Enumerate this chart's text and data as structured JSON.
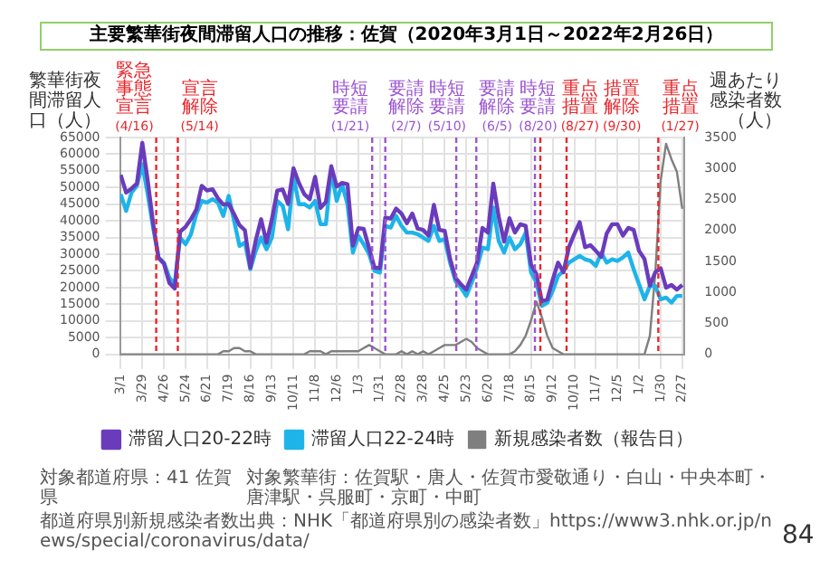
{
  "chart_data": {
    "type": "line",
    "title": "主要繁華街夜間滞留人口の推移：佐賀（2020年3月1日～2022年2月26日）",
    "ylabel": "繁華街夜間滞留人口（人）",
    "y2label": "週あたり感染者数（人）",
    "x": [
      "2020-03-01",
      "2020-03-08",
      "2020-03-15",
      "2020-03-22",
      "2020-03-29",
      "2020-04-05",
      "2020-04-12",
      "2020-04-19",
      "2020-04-26",
      "2020-05-03",
      "2020-05-10",
      "2020-05-17",
      "2020-05-24",
      "2020-05-31",
      "2020-06-07",
      "2020-06-14",
      "2020-06-21",
      "2020-06-28",
      "2020-07-05",
      "2020-07-12",
      "2020-07-19",
      "2020-07-26",
      "2020-08-02",
      "2020-08-09",
      "2020-08-16",
      "2020-08-23",
      "2020-08-30",
      "2020-09-06",
      "2020-09-13",
      "2020-09-20",
      "2020-09-27",
      "2020-10-04",
      "2020-10-11",
      "2020-10-18",
      "2020-10-25",
      "2020-11-01",
      "2020-11-08",
      "2020-11-15",
      "2020-11-22",
      "2020-11-29",
      "2020-12-06",
      "2020-12-13",
      "2020-12-20",
      "2020-12-27",
      "2021-01-03",
      "2021-01-10",
      "2021-01-17",
      "2021-01-24",
      "2021-01-31",
      "2021-02-07",
      "2021-02-14",
      "2021-02-21",
      "2021-02-28",
      "2021-03-07",
      "2021-03-14",
      "2021-03-21",
      "2021-03-28",
      "2021-04-04",
      "2021-04-11",
      "2021-04-18",
      "2021-04-25",
      "2021-05-02",
      "2021-05-09",
      "2021-05-16",
      "2021-05-23",
      "2021-05-30",
      "2021-06-06",
      "2021-06-13",
      "2021-06-20",
      "2021-06-27",
      "2021-07-04",
      "2021-07-11",
      "2021-07-18",
      "2021-07-25",
      "2021-08-01",
      "2021-08-08",
      "2021-08-15",
      "2021-08-22",
      "2021-08-29",
      "2021-09-05",
      "2021-09-12",
      "2021-09-19",
      "2021-09-26",
      "2021-10-03",
      "2021-10-10",
      "2021-10-17",
      "2021-10-24",
      "2021-10-31",
      "2021-11-07",
      "2021-11-14",
      "2021-11-21",
      "2021-11-28",
      "2021-12-05",
      "2021-12-12",
      "2021-12-19",
      "2021-12-26",
      "2022-01-02",
      "2022-01-09",
      "2022-01-16",
      "2022-01-23",
      "2022-01-30",
      "2022-02-06",
      "2022-02-13",
      "2022-02-20",
      "2022-02-27"
    ],
    "xlim": [
      "2020-02-29",
      "2022-03-02"
    ],
    "xticks": [
      {
        "value": "2020-03-01",
        "label": "3/1"
      },
      {
        "value": "2020-03-29",
        "label": "3/29"
      },
      {
        "value": "2020-04-26",
        "label": "4/26"
      },
      {
        "value": "2020-05-24",
        "label": "5/24"
      },
      {
        "value": "2020-06-21",
        "label": "6/21"
      },
      {
        "value": "2020-07-19",
        "label": "7/19"
      },
      {
        "value": "2020-08-16",
        "label": "8/16"
      },
      {
        "value": "2020-09-13",
        "label": "9/13"
      },
      {
        "value": "2020-10-11",
        "label": "10/11"
      },
      {
        "value": "2020-11-08",
        "label": "11/8"
      },
      {
        "value": "2020-12-06",
        "label": "12/6"
      },
      {
        "value": "2021-01-03",
        "label": "1/3"
      },
      {
        "value": "2021-01-31",
        "label": "1/31"
      },
      {
        "value": "2021-02-28",
        "label": "2/28"
      },
      {
        "value": "2021-03-28",
        "label": "3/28"
      },
      {
        "value": "2021-04-25",
        "label": "4/25"
      },
      {
        "value": "2021-05-23",
        "label": "5/23"
      },
      {
        "value": "2021-06-20",
        "label": "6/20"
      },
      {
        "value": "2021-07-18",
        "label": "7/18"
      },
      {
        "value": "2021-08-15",
        "label": "8/15"
      },
      {
        "value": "2021-09-12",
        "label": "9/12"
      },
      {
        "value": "2021-10-10",
        "label": "10/10"
      },
      {
        "value": "2021-11-07",
        "label": "11/7"
      },
      {
        "value": "2021-12-05",
        "label": "12/5"
      },
      {
        "value": "2022-01-02",
        "label": "1/2"
      },
      {
        "value": "2022-01-30",
        "label": "1/30"
      },
      {
        "value": "2022-02-27",
        "label": "2/27"
      }
    ],
    "ylim": [
      0,
      65000
    ],
    "yticks": [
      0,
      5000,
      10000,
      15000,
      20000,
      25000,
      30000,
      35000,
      40000,
      45000,
      50000,
      55000,
      60000,
      65000
    ],
    "y2lim": [
      0,
      3500
    ],
    "y2ticks": [
      0,
      500,
      1000,
      1500,
      2000,
      2500,
      3000,
      3500
    ],
    "series": [
      {
        "name": "滞留人口20-22時",
        "color": "#6a3cbc",
        "values": [
          53800,
          48500,
          49700,
          51200,
          63400,
          52000,
          39300,
          28900,
          27200,
          21400,
          19700,
          36800,
          38200,
          40500,
          43400,
          50500,
          49100,
          49500,
          46800,
          44900,
          45100,
          42000,
          38700,
          37200,
          26000,
          34100,
          40500,
          33500,
          40500,
          49100,
          49400,
          45100,
          55800,
          51400,
          48000,
          46500,
          53200,
          43900,
          45700,
          56400,
          50300,
          51400,
          51000,
          32600,
          37800,
          37600,
          31800,
          26000,
          25800,
          41000,
          40700,
          43700,
          42200,
          39300,
          42200,
          37700,
          37300,
          35600,
          44800,
          37300,
          37000,
          28600,
          22900,
          21000,
          19400,
          23400,
          27500,
          37900,
          36500,
          51200,
          41300,
          33800,
          40800,
          36500,
          39000,
          38500,
          26900,
          24000,
          15900,
          16500,
          22300,
          27500,
          24600,
          32100,
          36000,
          39600,
          32100,
          32700,
          31000,
          29200,
          36200,
          39000,
          39000,
          35600,
          37900,
          37300,
          31000,
          28600,
          20600,
          24600,
          25800,
          20000,
          20800,
          19400,
          20800
        ]
      },
      {
        "name": "滞留人口22-24時",
        "color": "#1eb4ea",
        "values": [
          48000,
          43000,
          48500,
          50500,
          57000,
          48000,
          38000,
          29000,
          27500,
          23000,
          21000,
          35000,
          33000,
          36000,
          42000,
          46000,
          45500,
          46500,
          45500,
          41500,
          47500,
          40000,
          32500,
          33500,
          25500,
          31000,
          35000,
          31500,
          35000,
          46000,
          44500,
          37500,
          53500,
          45000,
          45000,
          44000,
          46000,
          39000,
          39000,
          55000,
          46000,
          51000,
          45000,
          30500,
          35500,
          33000,
          30000,
          25000,
          24500,
          38500,
          38000,
          41500,
          38500,
          36500,
          36500,
          36000,
          35000,
          34000,
          38500,
          34000,
          34500,
          27500,
          22000,
          20000,
          17500,
          21500,
          26000,
          32000,
          31500,
          44000,
          34000,
          30500,
          35000,
          31500,
          33000,
          36500,
          24500,
          21500,
          14500,
          15500,
          19000,
          23500,
          25000,
          27500,
          28500,
          29500,
          28500,
          28000,
          26500,
          30500,
          27500,
          28500,
          28000,
          29000,
          30500,
          25500,
          21000,
          16500,
          20500,
          20500,
          16500,
          17000,
          15500,
          17500,
          17500
        ]
      },
      {
        "name": "新規感染者数（報告日）",
        "color": "#7f7f7f",
        "axis": "y2",
        "values": [
          0,
          0,
          0,
          0,
          0,
          0,
          0,
          0,
          0,
          0,
          0,
          0,
          0,
          0,
          0,
          0,
          0,
          0,
          0,
          50,
          50,
          100,
          100,
          50,
          50,
          0,
          0,
          0,
          0,
          0,
          0,
          0,
          0,
          0,
          0,
          50,
          50,
          50,
          0,
          50,
          50,
          50,
          50,
          50,
          50,
          100,
          150,
          100,
          50,
          0,
          0,
          0,
          50,
          0,
          50,
          0,
          50,
          0,
          50,
          100,
          150,
          150,
          150,
          200,
          250,
          200,
          100,
          50,
          0,
          0,
          0,
          0,
          0,
          50,
          150,
          300,
          550,
          850,
          600,
          300,
          100,
          50,
          0,
          0,
          0,
          0,
          0,
          0,
          0,
          0,
          0,
          0,
          0,
          0,
          0,
          0,
          0,
          0,
          300,
          1300,
          2800,
          3400,
          3150,
          2950,
          2350
        ]
      }
    ],
    "ref_lines": [
      {
        "axis": "x",
        "value": "2020-04-16",
        "label": "緊急事態宣言(4/16)",
        "color": "#e8262b",
        "line_style": "dashed"
      },
      {
        "axis": "x",
        "value": "2020-05-14",
        "label": "宣言解除(5/14)",
        "color": "#e8262b",
        "line_style": "dashed"
      },
      {
        "axis": "x",
        "value": "2021-01-21",
        "label": "時短要請(1/21)",
        "color": "#9b55d0",
        "line_style": "dashed"
      },
      {
        "axis": "x",
        "value": "2021-02-07",
        "label": "要請解除(2/7)",
        "color": "#9b55d0",
        "line_style": "dashed"
      },
      {
        "axis": "x",
        "value": "2021-05-10",
        "label": "時短要請(5/10)",
        "color": "#9b55d0",
        "line_style": "dashed"
      },
      {
        "axis": "x",
        "value": "2021-06-05",
        "label": "要請解除(6/5)",
        "color": "#9b55d0",
        "line_style": "dashed"
      },
      {
        "axis": "x",
        "value": "2021-08-20",
        "label": "時短要請(8/20)",
        "color": "#9b55d0",
        "line_style": "dashed"
      },
      {
        "axis": "x",
        "value": "2021-08-27",
        "label": "重点措置(8/27)",
        "color": "#e8262b",
        "line_style": "dashed"
      },
      {
        "axis": "x",
        "value": "2021-09-30",
        "label": "措置解除(9/30)",
        "color": "#e8262b",
        "line_style": "dashed"
      },
      {
        "axis": "x",
        "value": "2022-01-27",
        "label": "重点措置(1/27)",
        "color": "#e8262b",
        "line_style": "dashed"
      }
    ],
    "grid": true,
    "legend": "bottom",
    "annotations": [
      "対象都道府県：41 佐賀県",
      "対象繁華街：佐賀駅・唐人・佐賀市愛敬通り・白山・中央本町・唐津駅・呉服町・京町・中町",
      "都道府県別新規感染者数出典：NHK「都道府県別の感染者数」https://www3.nhk.or.jp/news/special/coronavirus/data/",
      "84"
    ]
  }
}
